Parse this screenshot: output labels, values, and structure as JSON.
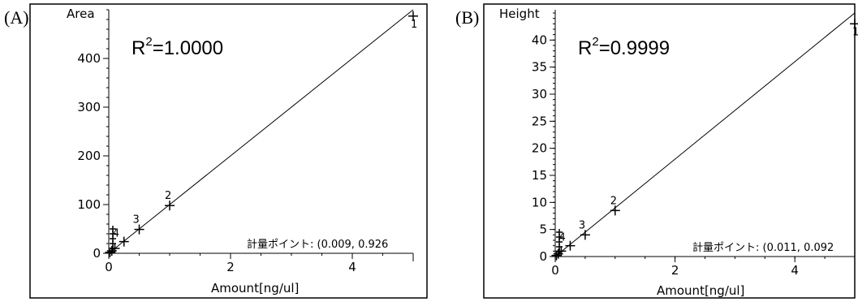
{
  "chart_data": [
    {
      "type": "scatter",
      "panel_label": "(A)",
      "r2_text": "R",
      "r2_sup": "2",
      "r2_value": "=1.0000",
      "ylabel": "Area",
      "xlabel": "Amount[ng/ul]",
      "xlim": [
        0,
        5
      ],
      "ylim": [
        0,
        500
      ],
      "xticks": [
        "0",
        "2",
        "4"
      ],
      "xtick_values": [
        0,
        2,
        4
      ],
      "yticks": [
        "0",
        "100",
        "200",
        "300",
        "400"
      ],
      "ytick_values": [
        0,
        100,
        200,
        300,
        400
      ],
      "fit_line": {
        "x": [
          0,
          5
        ],
        "y": [
          0,
          500
        ]
      },
      "points": [
        {
          "label": "1",
          "x": 5.0,
          "y": 487
        },
        {
          "label": "2",
          "x": 1.0,
          "y": 98
        },
        {
          "label": "3",
          "x": 0.5,
          "y": 49
        },
        {
          "label": "4",
          "x": 0.25,
          "y": 24
        },
        {
          "label": "",
          "x": 0.1,
          "y": 10
        },
        {
          "label": "",
          "x": 0.05,
          "y": 5
        },
        {
          "label": "",
          "x": 0.02,
          "y": 2
        }
      ],
      "point_labels": [
        {
          "label": "1",
          "x": 5.0,
          "y": 487
        },
        {
          "label": "2",
          "x": 1.0,
          "y": 98
        },
        {
          "label": "3",
          "x": 0.5,
          "y": 49
        },
        {
          "label": "4",
          "x": 0.25,
          "y": 24
        }
      ],
      "calibration_text": "計量ポイント: (0.009, 0.926"
    },
    {
      "type": "scatter",
      "panel_label": "(B)",
      "r2_text": "R",
      "r2_sup": "2",
      "r2_value": "=0.9999",
      "ylabel": "Height",
      "xlabel": "Amount[ng/ul]",
      "xlim": [
        0,
        5
      ],
      "ylim": [
        0,
        45
      ],
      "xticks": [
        "0",
        "2",
        "4"
      ],
      "xtick_values": [
        0,
        2,
        4
      ],
      "yticks": [
        "0",
        "5",
        "10",
        "15",
        "20",
        "25",
        "30",
        "35",
        "40"
      ],
      "ytick_values": [
        0,
        5,
        10,
        15,
        20,
        25,
        30,
        35,
        40
      ],
      "fit_line": {
        "x": [
          0,
          5
        ],
        "y": [
          0,
          45
        ]
      },
      "points": [
        {
          "label": "1",
          "x": 5.0,
          "y": 43
        },
        {
          "label": "2",
          "x": 1.0,
          "y": 8.5
        },
        {
          "label": "3",
          "x": 0.5,
          "y": 4
        },
        {
          "label": "4",
          "x": 0.25,
          "y": 2
        },
        {
          "label": "",
          "x": 0.1,
          "y": 1
        },
        {
          "label": "",
          "x": 0.05,
          "y": 0.5
        },
        {
          "label": "",
          "x": 0.02,
          "y": 0.2
        }
      ],
      "point_labels": [
        {
          "label": "1",
          "x": 5.0,
          "y": 43
        },
        {
          "label": "2",
          "x": 1.0,
          "y": 8.5
        },
        {
          "label": "3",
          "x": 0.5,
          "y": 4
        },
        {
          "label": "4",
          "x": 0.25,
          "y": 2
        }
      ],
      "calibration_text": "計量ポイント: (0.011, 0.092"
    }
  ]
}
